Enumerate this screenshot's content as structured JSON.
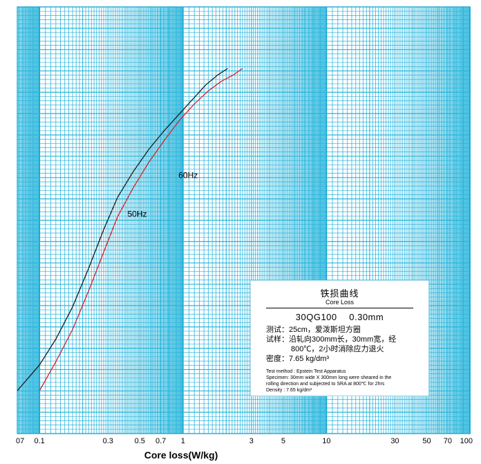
{
  "chart_data": {
    "type": "line",
    "title": "铁损曲线",
    "subtitle": "Core Loss",
    "xlabel": "Core loss(W/kg)",
    "ylabel": "",
    "xscale": "log",
    "xlim": [
      0.07,
      100
    ],
    "grid": true,
    "x_tick_labels": [
      "07",
      "0.1",
      "0.3",
      "0.5",
      "0.7",
      "1",
      "3",
      "5",
      "10",
      "30",
      "50",
      "70",
      "100"
    ],
    "series": [
      {
        "name": "50Hz",
        "color": "#1a1a1a",
        "x": [
          0.07,
          0.1,
          0.13,
          0.17,
          0.22,
          0.28,
          0.35,
          0.45,
          0.58,
          0.75,
          0.95,
          1.2,
          1.45,
          1.75,
          2.05
        ],
        "y": [
          0.0,
          0.08,
          0.16,
          0.26,
          0.38,
          0.5,
          0.6,
          0.68,
          0.75,
          0.81,
          0.86,
          0.91,
          0.95,
          0.98,
          1.0
        ]
      },
      {
        "name": "60Hz",
        "color": "#d8202a",
        "x": [
          0.1,
          0.13,
          0.17,
          0.22,
          0.28,
          0.35,
          0.45,
          0.58,
          0.75,
          0.95,
          1.2,
          1.5,
          1.85,
          2.25,
          2.6
        ],
        "y": [
          0.0,
          0.09,
          0.19,
          0.31,
          0.43,
          0.54,
          0.63,
          0.71,
          0.78,
          0.84,
          0.89,
          0.93,
          0.96,
          0.98,
          1.0
        ]
      }
    ]
  },
  "info": {
    "title_cn": "铁损曲线",
    "title_en": "Core Loss",
    "grade": "30QG100　 0.30mm",
    "cn_lines": [
      "测试：25cm，爱泼斯坦方圈",
      "试样：沿轧向300mm长，30mm宽，经",
      "800℃，2小时消除应力退火",
      "密度：7.65 kg/dm³"
    ],
    "en_lines": [
      "Test method : Epstein Test Apparatus",
      "Specimen: 30mm wide X 300mm long were sheared in the",
      "rolling direction and subjected to SRA at 800℃ for 2hrs",
      "Density : 7.65 kg/dm³"
    ]
  }
}
